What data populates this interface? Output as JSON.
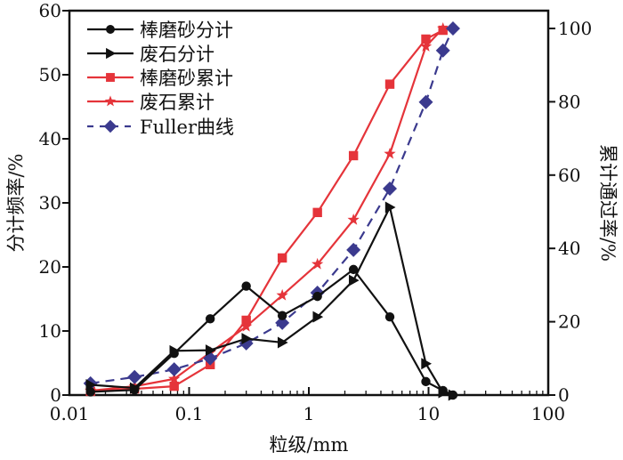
{
  "chart_data": {
    "type": "line",
    "title": "",
    "xlabel": "粒级/mm",
    "ylabel_left": "分计频率/%",
    "ylabel_right": "累计通过率/%",
    "xscale": "log",
    "xlim": [
      0.01,
      100
    ],
    "ylim_left": [
      0,
      60
    ],
    "ylim_right": [
      0,
      104.85
    ],
    "x_ticks": [
      0.01,
      0.1,
      1,
      10,
      100
    ],
    "x_tick_labels": [
      "0.01",
      "0.1",
      "1",
      "10",
      "100"
    ],
    "y_left_ticks": [
      0,
      10,
      20,
      30,
      40,
      50,
      60
    ],
    "y_left_tick_labels": [
      "0",
      "10",
      "20",
      "30",
      "40",
      "50",
      "60"
    ],
    "y_right_ticks": [
      0,
      20,
      40,
      60,
      80,
      100
    ],
    "y_right_tick_labels": [
      "0",
      "20",
      "40",
      "60",
      "80",
      "100"
    ],
    "grid": false,
    "legend_position": "top-left",
    "colors": {
      "black": "#111111",
      "red": "#e5343a",
      "navy": "#3b3a8e"
    },
    "series": [
      {
        "name": "棒磨砂分计",
        "axis": "left",
        "color": "#111111",
        "marker": "circle",
        "dash": false,
        "x": [
          0.015,
          0.035,
          0.075,
          0.15,
          0.3,
          0.6,
          1.18,
          2.36,
          4.75,
          9.5,
          13.2,
          16
        ],
        "values": [
          0.5,
          0.8,
          6.5,
          11.9,
          17.0,
          12.4,
          15.4,
          19.6,
          12.2,
          2.1,
          0.7,
          0
        ]
      },
      {
        "name": "废石分计",
        "axis": "left",
        "color": "#111111",
        "marker": "triangle-right",
        "dash": false,
        "x": [
          0.015,
          0.035,
          0.075,
          0.15,
          0.3,
          0.6,
          1.18,
          2.36,
          4.75,
          9.5,
          13.2,
          16
        ],
        "values": [
          1.6,
          1.1,
          6.9,
          7.0,
          8.8,
          8.2,
          12.2,
          17.9,
          29.3,
          4.9,
          0.4,
          0
        ]
      },
      {
        "name": "棒磨砂累计",
        "axis": "right",
        "color": "#e5343a",
        "marker": "square",
        "dash": false,
        "x": [
          0.015,
          0.035,
          0.075,
          0.15,
          0.3,
          0.6,
          1.18,
          2.36,
          4.75,
          9.5,
          13.2
        ],
        "values": [
          1.0,
          1.7,
          2.4,
          8.3,
          20.4,
          37.4,
          49.8,
          65.3,
          84.8,
          97.1,
          99.5
        ]
      },
      {
        "name": "废石累计",
        "axis": "right",
        "color": "#e5343a",
        "marker": "star",
        "dash": false,
        "x": [
          0.015,
          0.035,
          0.075,
          0.15,
          0.3,
          0.6,
          1.18,
          2.36,
          4.75,
          9.5,
          13.2
        ],
        "values": [
          1.2,
          2.4,
          4.4,
          11.6,
          18.7,
          27.2,
          35.7,
          47.8,
          65.8,
          95.1,
          100
        ]
      },
      {
        "name": "Fuller曲线",
        "axis": "right",
        "color": "#3b3a8e",
        "marker": "diamond",
        "dash": true,
        "x": [
          0.015,
          0.035,
          0.075,
          0.15,
          0.3,
          0.6,
          1.18,
          2.36,
          4.75,
          9.5,
          13.2,
          16
        ],
        "values": [
          3.2,
          4.9,
          7.0,
          10.0,
          14.1,
          19.7,
          27.9,
          39.6,
          56.3,
          79.9,
          94.0,
          100
        ]
      }
    ]
  }
}
